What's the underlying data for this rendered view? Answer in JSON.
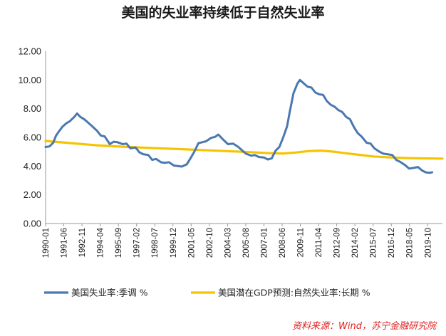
{
  "chart_data": {
    "type": "line",
    "title": "美国的失业率持续低于自然失业率",
    "ylim": [
      0,
      12
    ],
    "yticks": [
      "0.00",
      "2.00",
      "4.00",
      "6.00",
      "8.00",
      "10.00",
      "12.00"
    ],
    "xticks": [
      "1990-01",
      "1991-06",
      "1992-11",
      "1994-04",
      "1995-09",
      "1997-02",
      "1998-07",
      "1999-12",
      "2001-05",
      "2002-10",
      "2004-03",
      "2005-08",
      "2007-01",
      "2008-06",
      "2009-11",
      "2011-04",
      "2012-09",
      "2014-02",
      "2015-07",
      "2016-12",
      "2018-05",
      "2019-10"
    ],
    "xlim": [
      1990.0,
      2020.9
    ],
    "series": [
      {
        "name": "美国失业率:季调 %",
        "color": "#4a78b0",
        "x": [
          1990.0,
          1990.3,
          1990.6,
          1990.8,
          1991.0,
          1991.3,
          1991.6,
          1991.9,
          1992.2,
          1992.45,
          1992.7,
          1993.0,
          1993.3,
          1993.6,
          1994.0,
          1994.3,
          1994.6,
          1995.0,
          1995.3,
          1995.6,
          1996.0,
          1996.3,
          1996.6,
          1997.0,
          1997.3,
          1997.6,
          1998.0,
          1998.3,
          1998.6,
          1999.0,
          1999.3,
          1999.6,
          2000.0,
          2000.3,
          2000.6,
          2001.0,
          2001.3,
          2001.6,
          2001.9,
          2002.2,
          2002.5,
          2002.9,
          2003.2,
          2003.45,
          2003.8,
          2004.2,
          2004.6,
          2005.0,
          2005.3,
          2005.6,
          2006.0,
          2006.3,
          2006.6,
          2007.0,
          2007.3,
          2007.6,
          2007.9,
          2008.2,
          2008.5,
          2008.8,
          2009.0,
          2009.3,
          2009.6,
          2009.8,
          2010.1,
          2010.4,
          2010.7,
          2011.0,
          2011.3,
          2011.6,
          2011.9,
          2012.2,
          2012.5,
          2012.8,
          2013.1,
          2013.4,
          2013.7,
          2014.0,
          2014.3,
          2014.6,
          2015.0,
          2015.3,
          2015.6,
          2016.0,
          2016.3,
          2016.6,
          2017.0,
          2017.3,
          2017.6,
          2018.0,
          2018.3,
          2018.6,
          2019.0,
          2019.3,
          2019.6,
          2019.9,
          2020.1
        ],
        "values": [
          5.4,
          5.3,
          5.6,
          6.1,
          6.4,
          6.8,
          6.9,
          7.1,
          7.4,
          7.7,
          7.5,
          7.2,
          7.0,
          6.8,
          6.5,
          6.2,
          6.0,
          5.5,
          5.7,
          5.7,
          5.6,
          5.5,
          5.2,
          5.3,
          5.0,
          4.9,
          4.7,
          4.4,
          4.5,
          4.3,
          4.3,
          4.2,
          4.0,
          4.0,
          4.0,
          4.2,
          4.5,
          5.0,
          5.6,
          5.7,
          5.8,
          5.9,
          6.0,
          6.2,
          5.9,
          5.6,
          5.5,
          5.3,
          5.1,
          4.9,
          4.8,
          4.7,
          4.6,
          4.6,
          4.5,
          4.6,
          5.0,
          5.3,
          6.0,
          6.8,
          7.8,
          9.0,
          9.7,
          10.0,
          9.8,
          9.6,
          9.4,
          9.1,
          9.0,
          9.0,
          8.6,
          8.2,
          8.1,
          7.9,
          7.8,
          7.5,
          7.2,
          6.7,
          6.3,
          6.1,
          5.7,
          5.5,
          5.2,
          5.0,
          4.9,
          4.9,
          4.7,
          4.4,
          4.3,
          4.1,
          3.9,
          3.8,
          3.9,
          3.7,
          3.6,
          3.6,
          3.5
        ]
      },
      {
        "name": "美国潜在GDP预测:自然失业率:长期 %",
        "color": "#f5c400",
        "x": [
          1990.0,
          1992.0,
          1994.0,
          1996.0,
          1998.0,
          2000.0,
          2002.0,
          2004.0,
          2006.0,
          2007.5,
          2008.5,
          2009.5,
          2010.5,
          2011.5,
          2012.5,
          2013.5,
          2014.5,
          2015.5,
          2016.5,
          2017.5,
          2018.5,
          2020.9
        ],
        "values": [
          5.75,
          5.6,
          5.45,
          5.35,
          5.27,
          5.2,
          5.12,
          5.05,
          4.97,
          4.9,
          4.88,
          4.95,
          5.05,
          5.08,
          5.0,
          4.88,
          4.78,
          4.67,
          4.62,
          4.58,
          4.55,
          4.52
        ]
      }
    ],
    "legend": {
      "position": "bottom"
    },
    "source": "资料来源：Wind，苏宁金融研究院"
  }
}
